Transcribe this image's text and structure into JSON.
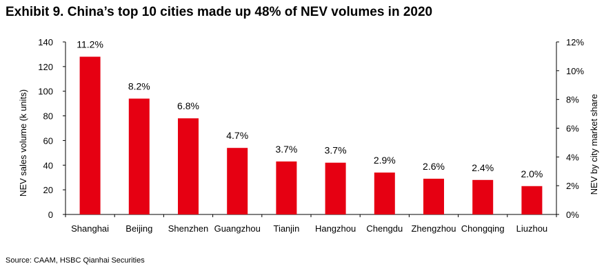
{
  "title": "Exhibit 9. China’s top 10 cities made up 48% of NEV volumes in 2020",
  "source": "Source: CAAM, HSBC Qianhai Securities",
  "chart_data": {
    "type": "bar",
    "categories": [
      "Shanghai",
      "Beijing",
      "Shenzhen",
      "Guangzhou",
      "Tianjin",
      "Hangzhou",
      "Chengdu",
      "Zhengzhou",
      "Chongqing",
      "Liuzhou"
    ],
    "values": [
      128,
      94,
      78,
      54,
      43,
      42,
      34,
      29,
      28,
      23
    ],
    "data_labels": [
      "11.2%",
      "8.2%",
      "6.8%",
      "4.7%",
      "3.7%",
      "3.7%",
      "2.9%",
      "2.6%",
      "2.4%",
      "2.0%"
    ],
    "ylabel": "NEV sales volume (k units)",
    "ylim": [
      0,
      140
    ],
    "yticks": [
      "0",
      "20",
      "40",
      "60",
      "80",
      "100",
      "120",
      "140"
    ],
    "y2label": "NEV by city market share",
    "y2lim": [
      0,
      12
    ],
    "y2ticks": [
      "0%",
      "2%",
      "4%",
      "6%",
      "8%",
      "10%",
      "12%"
    ],
    "grid": false,
    "bar_color": "#e60012"
  }
}
